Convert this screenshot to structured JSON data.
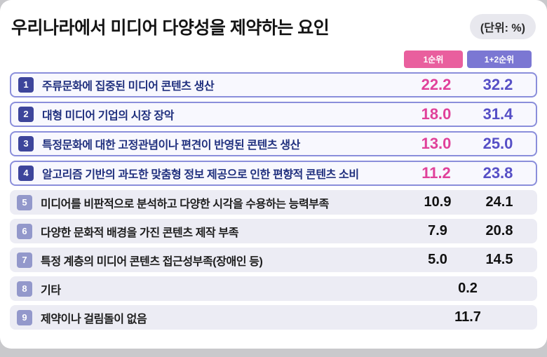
{
  "title": "우리나라에서 미디어 다양성을 제약하는 요인",
  "unit_label": "(단위: %)",
  "columns": {
    "rank1": "1순위",
    "rank12": "1+2순위"
  },
  "colors": {
    "rank1_value": "#e0419a",
    "rank12_value": "#564fc6",
    "badge_dark": "#3d459b",
    "badge_light": "#9398cb",
    "highlight_border": "#8a8edb"
  },
  "chart_data": {
    "type": "table",
    "title": "우리나라에서 미디어 다양성을 제약하는 요인",
    "unit": "%",
    "columns": [
      "1순위",
      "1+2순위"
    ],
    "rows": [
      {
        "rank": "1",
        "label": "주류문화에 집중된 미디어 콘텐츠 생산",
        "rank1": "22.2",
        "rank12": "32.2",
        "highlight": true
      },
      {
        "rank": "2",
        "label": "대형 미디어 기업의 시장 장악",
        "rank1": "18.0",
        "rank12": "31.4",
        "highlight": true
      },
      {
        "rank": "3",
        "label": "특정문화에 대한 고정관념이나 편견이 반영된 콘텐츠 생산",
        "rank1": "13.0",
        "rank12": "25.0",
        "highlight": true
      },
      {
        "rank": "4",
        "label": "알고리즘 기반의 과도한 맞춤형 정보 제공으로 인한 편향적 콘텐츠 소비",
        "rank1": "11.2",
        "rank12": "23.8",
        "highlight": true
      },
      {
        "rank": "5",
        "label": "미디어를 비판적으로 분석하고 다양한 시각을 수용하는 능력부족",
        "rank1": "10.9",
        "rank12": "24.1",
        "highlight": false
      },
      {
        "rank": "6",
        "label": "다양한 문화적 배경을 가진 콘텐츠 제작 부족",
        "rank1": "7.9",
        "rank12": "20.8",
        "highlight": false
      },
      {
        "rank": "7",
        "label": "특정 계층의 미디어 콘텐츠 접근성부족(장애인 등)",
        "rank1": "5.0",
        "rank12": "14.5",
        "highlight": false
      },
      {
        "rank": "8",
        "label": "기타",
        "value": "0.2",
        "highlight": false
      },
      {
        "rank": "9",
        "label": "제약이나 걸림돌이 없음",
        "value": "11.7",
        "highlight": false
      }
    ]
  }
}
